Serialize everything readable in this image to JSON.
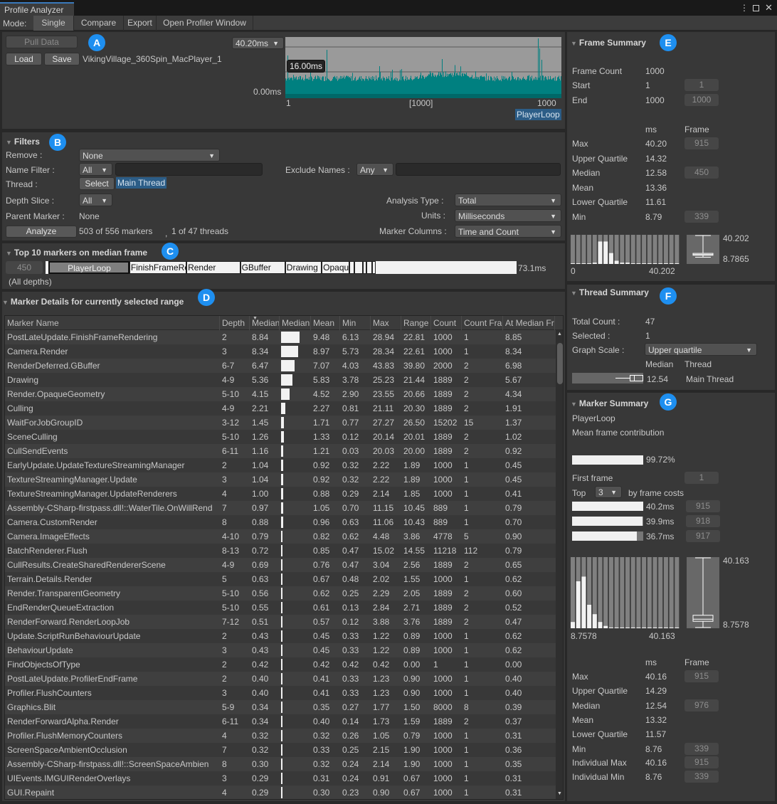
{
  "window": {
    "title": "Profile Analyzer",
    "menu_icon": "kebab-icon",
    "maximize_icon": "maximize-icon",
    "close_icon": "close-icon"
  },
  "mode": {
    "label": "Mode:",
    "tabs": [
      "Single",
      "Compare"
    ],
    "selected": "Single",
    "export": "Export",
    "open_profiler": "Open Profiler Window"
  },
  "data_section": {
    "badge": "A",
    "pull_data": "Pull Data",
    "load": "Load",
    "save": "Save",
    "file_name": "VikingVillage_360Spin_MacPlayer_1",
    "scale_dropdown": "40.20ms",
    "gridline_label": "16.00ms",
    "zero_label": "0.00ms",
    "x_start": "1",
    "x_mid": "[1000]",
    "x_end": "1000",
    "selected_marker": "PlayerLoop",
    "colors": {
      "bars": "#008080",
      "bar_base": "#006868",
      "background": "#9a9a9a"
    }
  },
  "filters": {
    "badge": "B",
    "title": "Filters",
    "remove_label": "Remove :",
    "remove_value": "None",
    "name_filter_label": "Name Filter :",
    "name_filter_mode": "All",
    "name_filter_value": "",
    "exclude_label": "Exclude Names :",
    "exclude_mode": "Any",
    "exclude_value": "",
    "thread_label": "Thread :",
    "thread_select": "Select",
    "thread_value": "Main Thread",
    "depth_label": "Depth Slice :",
    "depth_value": "All",
    "parent_label": "Parent Marker :",
    "parent_value": "None",
    "analyze": "Analyze",
    "markers_count": "503 of 556 markers",
    "separator": ",",
    "threads_count": "1 of 47 threads",
    "analysis_type_label": "Analysis Type :",
    "analysis_type_value": "Total",
    "units_label": "Units :",
    "units_value": "Milliseconds",
    "marker_columns_label": "Marker Columns :",
    "marker_columns_value": "Time and Count"
  },
  "top10": {
    "badge": "C",
    "title": "Top 10 markers on median frame",
    "frame": "450",
    "depth_note": "(All depths)",
    "total": "73.1ms",
    "total_ms": 73.1,
    "segments": [
      {
        "name": "PlayerLoop",
        "ms": 12.58,
        "selected": true
      },
      {
        "name": "FinishFrameRendering",
        "ms": 8.85
      },
      {
        "name": "Render",
        "ms": 8.34
      },
      {
        "name": "GBuffer",
        "ms": 6.98
      },
      {
        "name": "Drawing",
        "ms": 5.67
      },
      {
        "name": "Opaque",
        "ms": 4.34
      },
      {
        "ms": 0.7
      },
      {
        "ms": 1.37
      },
      {
        "ms": 0.5
      },
      {
        "ms": 0.92
      },
      {
        "ms": 0.5
      }
    ]
  },
  "marker_details": {
    "badge": "D",
    "title": "Marker Details for currently selected range",
    "columns": [
      "Marker Name",
      "Depth",
      "Median",
      "Median Bar",
      "Mean",
      "Min",
      "Max",
      "Range",
      "Count",
      "Count Frames",
      "At Median Frame"
    ],
    "sort_column": "Median",
    "rows": [
      [
        "PostLateUpdate.FinishFrameRendering",
        "2",
        "8.84",
        "9.48",
        "6.13",
        "28.94",
        "22.81",
        "1000",
        "1",
        "8.85"
      ],
      [
        "Camera.Render",
        "3",
        "8.34",
        "8.97",
        "5.73",
        "28.34",
        "22.61",
        "1000",
        "1",
        "8.34"
      ],
      [
        "RenderDeferred.GBuffer",
        "6-7",
        "6.47",
        "7.07",
        "4.03",
        "43.83",
        "39.80",
        "2000",
        "2",
        "6.98"
      ],
      [
        "Drawing",
        "4-9",
        "5.36",
        "5.83",
        "3.78",
        "25.23",
        "21.44",
        "1889",
        "2",
        "5.67"
      ],
      [
        "Render.OpaqueGeometry",
        "5-10",
        "4.15",
        "4.52",
        "2.90",
        "23.55",
        "20.66",
        "1889",
        "2",
        "4.34"
      ],
      [
        "Culling",
        "4-9",
        "2.21",
        "2.27",
        "0.81",
        "21.11",
        "20.30",
        "1889",
        "2",
        "1.91"
      ],
      [
        "WaitForJobGroupID",
        "3-12",
        "1.45",
        "1.71",
        "0.77",
        "27.27",
        "26.50",
        "15202",
        "15",
        "1.37"
      ],
      [
        "SceneCulling",
        "5-10",
        "1.26",
        "1.33",
        "0.12",
        "20.14",
        "20.01",
        "1889",
        "2",
        "1.02"
      ],
      [
        "CullSendEvents",
        "6-11",
        "1.16",
        "1.21",
        "0.03",
        "20.03",
        "20.00",
        "1889",
        "2",
        "0.92"
      ],
      [
        "EarlyUpdate.UpdateTextureStreamingManager",
        "2",
        "1.04",
        "0.92",
        "0.32",
        "2.22",
        "1.89",
        "1000",
        "1",
        "0.45"
      ],
      [
        "TextureStreamingManager.Update",
        "3",
        "1.04",
        "0.92",
        "0.32",
        "2.22",
        "1.89",
        "1000",
        "1",
        "0.45"
      ],
      [
        "TextureStreamingManager.UpdateRenderers",
        "4",
        "1.00",
        "0.88",
        "0.29",
        "2.14",
        "1.85",
        "1000",
        "1",
        "0.41"
      ],
      [
        "Assembly-CSharp-firstpass.dll!::WaterTile.OnWillRend",
        "7",
        "0.97",
        "1.05",
        "0.70",
        "11.15",
        "10.45",
        "889",
        "1",
        "0.79"
      ],
      [
        "Camera.CustomRender",
        "8",
        "0.88",
        "0.96",
        "0.63",
        "11.06",
        "10.43",
        "889",
        "1",
        "0.70"
      ],
      [
        "Camera.ImageEffects",
        "4-10",
        "0.79",
        "0.82",
        "0.62",
        "4.48",
        "3.86",
        "4778",
        "5",
        "0.90"
      ],
      [
        "BatchRenderer.Flush",
        "8-13",
        "0.72",
        "0.85",
        "0.47",
        "15.02",
        "14.55",
        "11218",
        "112",
        "0.79"
      ],
      [
        "CullResults.CreateSharedRendererScene",
        "4-9",
        "0.69",
        "0.76",
        "0.47",
        "3.04",
        "2.56",
        "1889",
        "2",
        "0.65"
      ],
      [
        "Terrain.Details.Render",
        "5",
        "0.63",
        "0.67",
        "0.48",
        "2.02",
        "1.55",
        "1000",
        "1",
        "0.62"
      ],
      [
        "Render.TransparentGeometry",
        "5-10",
        "0.56",
        "0.62",
        "0.25",
        "2.29",
        "2.05",
        "1889",
        "2",
        "0.60"
      ],
      [
        "EndRenderQueueExtraction",
        "5-10",
        "0.55",
        "0.61",
        "0.13",
        "2.84",
        "2.71",
        "1889",
        "2",
        "0.52"
      ],
      [
        "RenderForward.RenderLoopJob",
        "7-12",
        "0.51",
        "0.57",
        "0.12",
        "3.88",
        "3.76",
        "1889",
        "2",
        "0.47"
      ],
      [
        "Update.ScriptRunBehaviourUpdate",
        "2",
        "0.43",
        "0.45",
        "0.33",
        "1.22",
        "0.89",
        "1000",
        "1",
        "0.62"
      ],
      [
        "BehaviourUpdate",
        "3",
        "0.43",
        "0.45",
        "0.33",
        "1.22",
        "0.89",
        "1000",
        "1",
        "0.62"
      ],
      [
        "FindObjectsOfType",
        "2",
        "0.42",
        "0.42",
        "0.42",
        "0.42",
        "0.00",
        "1",
        "1",
        "0.00"
      ],
      [
        "PostLateUpdate.ProfilerEndFrame",
        "2",
        "0.40",
        "0.41",
        "0.33",
        "1.23",
        "0.90",
        "1000",
        "1",
        "0.40"
      ],
      [
        "Profiler.FlushCounters",
        "3",
        "0.40",
        "0.41",
        "0.33",
        "1.23",
        "0.90",
        "1000",
        "1",
        "0.40"
      ],
      [
        "Graphics.Blit",
        "5-9",
        "0.34",
        "0.35",
        "0.27",
        "1.77",
        "1.50",
        "8000",
        "8",
        "0.39"
      ],
      [
        "RenderForwardAlpha.Render",
        "6-11",
        "0.34",
        "0.40",
        "0.14",
        "1.73",
        "1.59",
        "1889",
        "2",
        "0.37"
      ],
      [
        "Profiler.FlushMemoryCounters",
        "4",
        "0.32",
        "0.32",
        "0.26",
        "1.05",
        "0.79",
        "1000",
        "1",
        "0.31"
      ],
      [
        "ScreenSpaceAmbientOcclusion",
        "7",
        "0.32",
        "0.33",
        "0.25",
        "2.15",
        "1.90",
        "1000",
        "1",
        "0.36"
      ],
      [
        "Assembly-CSharp-firstpass.dll!::ScreenSpaceAmbien",
        "8",
        "0.30",
        "0.32",
        "0.24",
        "2.14",
        "1.90",
        "1000",
        "1",
        "0.35"
      ],
      [
        "UIEvents.IMGUIRenderOverlays",
        "3",
        "0.29",
        "0.31",
        "0.24",
        "0.91",
        "0.67",
        "1000",
        "1",
        "0.31"
      ],
      [
        "GUI.Repaint",
        "4",
        "0.29",
        "0.30",
        "0.23",
        "0.90",
        "0.67",
        "1000",
        "1",
        "0.31"
      ]
    ]
  },
  "frame_summary": {
    "badge": "E",
    "title": "Frame Summary",
    "frame_count_label": "Frame Count",
    "frame_count": "1000",
    "start_label": "Start",
    "start": "1",
    "start_field": "1",
    "end_label": "End",
    "end": "1000",
    "end_field": "1000",
    "ms_header": "ms",
    "frame_header": "Frame",
    "stats": [
      {
        "label": "Max",
        "ms": "40.20",
        "frame": "915"
      },
      {
        "label": "Upper Quartile",
        "ms": "14.32"
      },
      {
        "label": "Median",
        "ms": "12.58",
        "frame": "450"
      },
      {
        "label": "Mean",
        "ms": "13.36"
      },
      {
        "label": "Lower Quartile",
        "ms": "11.61"
      },
      {
        "label": "Min",
        "ms": "8.79",
        "frame": "339"
      }
    ],
    "histogram": [
      0,
      0,
      0,
      0,
      0.02,
      0.35,
      0.35,
      0.17,
      0.05,
      0.02,
      0.02,
      0.01,
      0.01,
      0.01,
      0.01,
      0.01,
      0.01,
      0.01,
      0.01,
      0.01
    ],
    "hist_min": "0",
    "hist_max": "40.202",
    "box_max": "40.202",
    "box_min": "8.7865",
    "box": {
      "min": 8.7865,
      "lq": 11.61,
      "median": 12.58,
      "uq": 14.32,
      "max": 40.202,
      "range_min": 0,
      "range_max": 40.202
    }
  },
  "thread_summary": {
    "badge": "F",
    "title": "Thread Summary",
    "total_label": "Total Count :",
    "total": "47",
    "selected_label": "Selected :",
    "selected": "1",
    "scale_label": "Graph Scale :",
    "scale_value": "Upper quartile",
    "median_header": "Median",
    "thread_header": "Thread",
    "median": "12.54",
    "thread": "Main Thread"
  },
  "marker_summary": {
    "badge": "G",
    "title": "Marker Summary",
    "marker": "PlayerLoop",
    "contribution_label": "Mean frame contribution",
    "contribution": "99.72%",
    "contribution_fraction": 0.9972,
    "first_frame_label": "First frame",
    "first_frame": "1",
    "top_label": "Top",
    "top_value": "3",
    "top_suffix": "by frame costs",
    "top_frames": [
      {
        "ms": "40.2ms",
        "fraction": 1.0,
        "frame": "915"
      },
      {
        "ms": "39.9ms",
        "fraction": 0.993,
        "frame": "918"
      },
      {
        "ms": "36.7ms",
        "fraction": 0.913,
        "frame": "917"
      }
    ],
    "histogram": [
      0.04,
      0.3,
      0.33,
      0.15,
      0.09,
      0.04,
      0.015,
      0.005,
      0.005,
      0.005,
      0.005,
      0.005,
      0.005,
      0.005,
      0.005,
      0.005,
      0.005,
      0.005,
      0.005,
      0.005
    ],
    "hist_min": "8.7578",
    "hist_max": "40.163",
    "box_max": "40.163",
    "box_min": "8.7578",
    "box": {
      "min": 8.7578,
      "lq": 11.57,
      "median": 12.54,
      "uq": 14.29,
      "max": 40.163
    },
    "ms_header": "ms",
    "frame_header": "Frame",
    "stats": [
      {
        "label": "Max",
        "ms": "40.16",
        "frame": "915"
      },
      {
        "label": "Upper Quartile",
        "ms": "14.29"
      },
      {
        "label": "Median",
        "ms": "12.54",
        "frame": "976"
      },
      {
        "label": "Mean",
        "ms": "13.32"
      },
      {
        "label": "Lower Quartile",
        "ms": "11.57"
      },
      {
        "label": "Min",
        "ms": "8.76",
        "frame": "339"
      }
    ],
    "individual": [
      {
        "label": "Individual Max",
        "ms": "40.16",
        "frame": "915"
      },
      {
        "label": "Individual Min",
        "ms": "8.76",
        "frame": "339"
      }
    ]
  }
}
